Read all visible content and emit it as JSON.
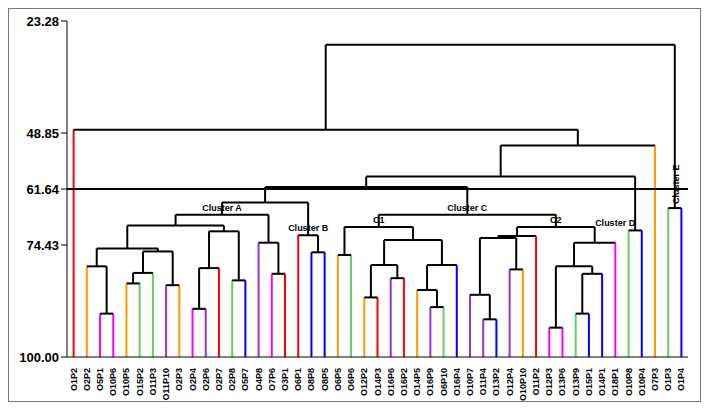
{
  "chart_data": {
    "type": "dendrogram",
    "ylim": [
      23.28,
      100
    ],
    "yticks": [
      23.28,
      48.85,
      61.64,
      74.43,
      {
        "value": 100,
        "label": "100.00"
      }
    ],
    "threshold": 61.64,
    "leaves": [
      {
        "label": "O1P2",
        "color": "#ff0000"
      },
      {
        "label": "O2P2",
        "color": "#ff9900"
      },
      {
        "label": "O5P1",
        "color": "#ff00ff"
      },
      {
        "label": "O10P6",
        "color": "#ff00ff"
      },
      {
        "label": "O10P5",
        "color": "#ff9900"
      },
      {
        "label": "O15P2",
        "color": "#66cc66"
      },
      {
        "label": "O11P3",
        "color": "#66cc66"
      },
      {
        "label": "O11P10",
        "color": "#9933cc"
      },
      {
        "label": "O2P3",
        "color": "#ff9900"
      },
      {
        "label": "O2P4",
        "color": "#ff00ff"
      },
      {
        "label": "O2P6",
        "color": "#9933cc"
      },
      {
        "label": "O2P7",
        "color": "#ff0000"
      },
      {
        "label": "O2P8",
        "color": "#66cc66"
      },
      {
        "label": "O5P7",
        "color": "#0000ff"
      },
      {
        "label": "O4P8",
        "color": "#9933cc"
      },
      {
        "label": "O7P6",
        "color": "#ff00ff"
      },
      {
        "label": "O3P1",
        "color": "#ff0000"
      },
      {
        "label": "O6P1",
        "color": "#ff0000"
      },
      {
        "label": "O8P8",
        "color": "#0000ff"
      },
      {
        "label": "O8P5",
        "color": "#0000ff"
      },
      {
        "label": "O6P5",
        "color": "#ff9900"
      },
      {
        "label": "O6P6",
        "color": "#66cc66"
      },
      {
        "label": "O12P2",
        "color": "#ff9900"
      },
      {
        "label": "O14P3",
        "color": "#ff0000"
      },
      {
        "label": "O16P6",
        "color": "#9933cc"
      },
      {
        "label": "O16P2",
        "color": "#ff0000"
      },
      {
        "label": "O14P5",
        "color": "#ff9900"
      },
      {
        "label": "O16P9",
        "color": "#9933cc"
      },
      {
        "label": "O6P10",
        "color": "#66cc66"
      },
      {
        "label": "O16P4",
        "color": "#0000ff"
      },
      {
        "label": "O10P7",
        "color": "#9933cc"
      },
      {
        "label": "O11P4",
        "color": "#9933cc"
      },
      {
        "label": "O13P2",
        "color": "#0000ff"
      },
      {
        "label": "O12P4",
        "color": "#9933cc"
      },
      {
        "label": "O10P10",
        "color": "#ff9900"
      },
      {
        "label": "O11P2",
        "color": "#ff0000"
      },
      {
        "label": "O12P3",
        "color": "#ff00ff"
      },
      {
        "label": "O13P6",
        "color": "#ff00ff"
      },
      {
        "label": "O13P9",
        "color": "#66cc66"
      },
      {
        "label": "O15P1",
        "color": "#0000ff"
      },
      {
        "label": "O14P1",
        "color": "#0000ff"
      },
      {
        "label": "O18P1",
        "color": "#ff00ff"
      },
      {
        "label": "O10P8",
        "color": "#66cc66"
      },
      {
        "label": "O10P4",
        "color": "#0000ff"
      },
      {
        "label": "O7P3",
        "color": "#ff9900"
      },
      {
        "label": "O1P3",
        "color": "#66cc66"
      },
      {
        "label": "O1P4",
        "color": "#0000ff"
      }
    ],
    "merges": [
      [
        2,
        3,
        90.1
      ],
      [
        1,
        47,
        79.3
      ],
      [
        4,
        5,
        83.2
      ],
      [
        49,
        6,
        80.8
      ],
      [
        7,
        8,
        83.6
      ],
      [
        50,
        51,
        75.9
      ],
      [
        48,
        52,
        75.2
      ],
      [
        9,
        10,
        89.0
      ],
      [
        54,
        11,
        79.7
      ],
      [
        12,
        13,
        82.5
      ],
      [
        55,
        56,
        71.3
      ],
      [
        53,
        57,
        70.0
      ],
      [
        15,
        16,
        81.0
      ],
      [
        14,
        59,
        73.9
      ],
      [
        58,
        60,
        67.5
      ],
      [
        18,
        19,
        76.1
      ],
      [
        17,
        62,
        72.2
      ],
      [
        61,
        63,
        64.7
      ],
      [
        20,
        21,
        76.7
      ],
      [
        22,
        23,
        86.4
      ],
      [
        24,
        25,
        82.0
      ],
      [
        66,
        67,
        79.0
      ],
      [
        27,
        28,
        88.6
      ],
      [
        26,
        69,
        84.7
      ],
      [
        70,
        29,
        79.0
      ],
      [
        68,
        71,
        73.3
      ],
      [
        65,
        72,
        70.3
      ],
      [
        31,
        32,
        91.4
      ],
      [
        30,
        74,
        85.8
      ],
      [
        33,
        34,
        80.0
      ],
      [
        75,
        76,
        72.8
      ],
      [
        77,
        35,
        72.4
      ],
      [
        36,
        37,
        93.3
      ],
      [
        38,
        39,
        90.1
      ],
      [
        80,
        40,
        81.0
      ],
      [
        79,
        81,
        79.3
      ],
      [
        82,
        41,
        73.9
      ],
      [
        78,
        83,
        70.3
      ],
      [
        73,
        84,
        67.5
      ],
      [
        64,
        85,
        61.2
      ],
      [
        42,
        43,
        71.1
      ],
      [
        86,
        87,
        58.8
      ],
      [
        88,
        44,
        51.7
      ],
      [
        0,
        89,
        48.1
      ],
      [
        45,
        46,
        66.0
      ],
      [
        90,
        91,
        28.7
      ]
    ],
    "annotations": [
      {
        "text": "Cluster A",
        "node": 61
      },
      {
        "text": "Cluster B",
        "node": 63
      },
      {
        "text": "C1",
        "node": 73
      },
      {
        "text": "Cluster C",
        "node": 85
      },
      {
        "text": "C2",
        "node": 84
      },
      {
        "text": "Cluster D",
        "node": 87
      },
      {
        "text": "Cluster E",
        "node": 91
      }
    ]
  }
}
